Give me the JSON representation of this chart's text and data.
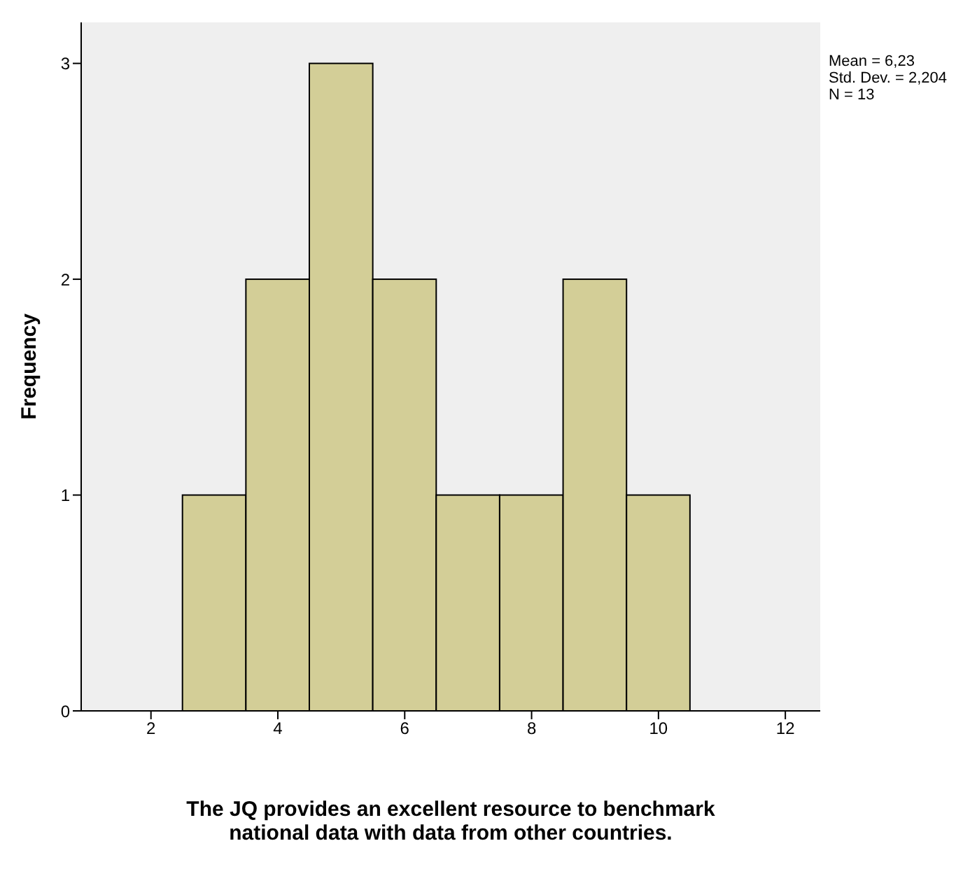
{
  "chart_data": {
    "type": "histogram",
    "xlabel": "The JQ provides an excellent resource to benchmark national data with data from other countries.",
    "ylabel": "Frequency",
    "bins": [
      2.5,
      3.5,
      4.5,
      5.5,
      6.5,
      7.5,
      8.5,
      9.5,
      10.5
    ],
    "values": [
      1,
      2,
      3,
      2,
      1,
      1,
      2,
      1
    ],
    "color": "#d3ce97",
    "xlim": [
      0.9,
      12.55
    ],
    "xticks": [
      2,
      4,
      6,
      8,
      10,
      12
    ],
    "ylim": [
      0,
      3.19
    ],
    "yticks": [
      0,
      1,
      2,
      3
    ],
    "annotations": [
      "Mean = 6,23",
      "Std. Dev. = 2,204",
      "N = 13"
    ],
    "grid": false
  }
}
